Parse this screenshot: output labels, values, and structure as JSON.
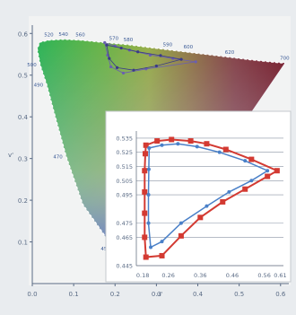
{
  "colors": {
    "background": "#e9ecef",
    "plot_area": "#f2f3f3",
    "axis": "#5a6b85",
    "label_text": "#3a5a96",
    "inset_series_red": "#d33a32",
    "inset_series_blue": "#4a80c8"
  },
  "chart_data": [
    {
      "type": "scatter",
      "title": "",
      "xlabel": "u'",
      "ylabel": "v'",
      "xlim": [
        0,
        0.62
      ],
      "ylim": [
        0,
        0.62
      ],
      "x_ticks": [
        "0.0",
        "0.1",
        "0.2",
        "0.3",
        "0.4",
        "0.5",
        "0.6"
      ],
      "y_ticks": [
        "0.1",
        "0.2",
        "0.3",
        "0.4",
        "0.5",
        "0.6"
      ],
      "locus_wavelength_labels": [
        "520",
        "540",
        "560",
        "570",
        "580",
        "590",
        "600",
        "620",
        "700",
        "500",
        "490",
        "470",
        "450"
      ],
      "spectral_locus": [
        {
          "x": 0.257,
          "y": 0.017
        },
        {
          "x": 0.197,
          "y": 0.084
        },
        {
          "x": 0.122,
          "y": 0.19
        },
        {
          "x": 0.082,
          "y": 0.305
        },
        {
          "x": 0.054,
          "y": 0.406
        },
        {
          "x": 0.035,
          "y": 0.477
        },
        {
          "x": 0.019,
          "y": 0.525
        },
        {
          "x": 0.012,
          "y": 0.562
        },
        {
          "x": 0.018,
          "y": 0.579
        },
        {
          "x": 0.04,
          "y": 0.584
        },
        {
          "x": 0.075,
          "y": 0.586
        },
        {
          "x": 0.116,
          "y": 0.584
        },
        {
          "x": 0.158,
          "y": 0.58
        },
        {
          "x": 0.197,
          "y": 0.576
        },
        {
          "x": 0.232,
          "y": 0.573
        },
        {
          "x": 0.278,
          "y": 0.567
        },
        {
          "x": 0.327,
          "y": 0.561
        },
        {
          "x": 0.377,
          "y": 0.555
        },
        {
          "x": 0.427,
          "y": 0.549
        },
        {
          "x": 0.477,
          "y": 0.543
        },
        {
          "x": 0.527,
          "y": 0.537
        },
        {
          "x": 0.563,
          "y": 0.533
        },
        {
          "x": 0.594,
          "y": 0.53
        },
        {
          "x": 0.61,
          "y": 0.529
        }
      ],
      "series": [
        {
          "values": [
            {
              "x": 0.175,
              "y": 0.578
            },
            {
              "x": 0.2,
              "y": 0.57
            },
            {
              "x": 0.235,
              "y": 0.56
            },
            {
              "x": 0.285,
              "y": 0.548
            },
            {
              "x": 0.34,
              "y": 0.54
            },
            {
              "x": 0.395,
              "y": 0.532
            },
            {
              "x": 0.275,
              "y": 0.515
            },
            {
              "x": 0.22,
              "y": 0.505
            },
            {
              "x": 0.19,
              "y": 0.52
            },
            {
              "x": 0.182,
              "y": 0.548
            }
          ]
        },
        {
          "values": [
            {
              "x": 0.18,
              "y": 0.572
            },
            {
              "x": 0.215,
              "y": 0.565
            },
            {
              "x": 0.255,
              "y": 0.556
            },
            {
              "x": 0.31,
              "y": 0.547
            },
            {
              "x": 0.36,
              "y": 0.538
            },
            {
              "x": 0.3,
              "y": 0.522
            },
            {
              "x": 0.245,
              "y": 0.512
            },
            {
              "x": 0.205,
              "y": 0.518
            },
            {
              "x": 0.186,
              "y": 0.54
            }
          ]
        }
      ]
    },
    {
      "type": "line",
      "title": "",
      "xlabel": "",
      "ylabel": "",
      "xlim": [
        0.16,
        0.62
      ],
      "ylim": [
        0.445,
        0.54
      ],
      "x_ticks": [
        "0.18",
        "0.26",
        "0.36",
        "0.46",
        "0.56",
        "0.61"
      ],
      "x_tick_values": [
        0.18,
        0.26,
        0.36,
        0.46,
        0.56,
        0.61
      ],
      "y_ticks": [
        "0.445",
        "0.465",
        "0.475",
        "0.495",
        "0.505",
        "0.515",
        "0.525",
        "0.535"
      ],
      "y_tick_values": [
        0.445,
        0.465,
        0.475,
        0.495,
        0.505,
        0.515,
        0.525,
        0.535
      ],
      "grid": true,
      "series": [
        {
          "values": [
            {
              "x": 0.19,
              "y": 0.53
            },
            {
              "x": 0.225,
              "y": 0.533
            },
            {
              "x": 0.27,
              "y": 0.534
            },
            {
              "x": 0.33,
              "y": 0.533
            },
            {
              "x": 0.38,
              "y": 0.531
            },
            {
              "x": 0.44,
              "y": 0.527
            },
            {
              "x": 0.52,
              "y": 0.52
            },
            {
              "x": 0.6,
              "y": 0.512
            },
            {
              "x": 0.57,
              "y": 0.508
            },
            {
              "x": 0.5,
              "y": 0.499
            },
            {
              "x": 0.43,
              "y": 0.49
            },
            {
              "x": 0.36,
              "y": 0.479
            },
            {
              "x": 0.3,
              "y": 0.466
            },
            {
              "x": 0.24,
              "y": 0.452
            },
            {
              "x": 0.19,
              "y": 0.451
            },
            {
              "x": 0.186,
              "y": 0.465
            },
            {
              "x": 0.186,
              "y": 0.482
            },
            {
              "x": 0.186,
              "y": 0.497
            },
            {
              "x": 0.186,
              "y": 0.512
            },
            {
              "x": 0.188,
              "y": 0.524
            }
          ]
        },
        {
          "values": [
            {
              "x": 0.2,
              "y": 0.528
            },
            {
              "x": 0.24,
              "y": 0.53
            },
            {
              "x": 0.29,
              "y": 0.531
            },
            {
              "x": 0.35,
              "y": 0.529
            },
            {
              "x": 0.42,
              "y": 0.525
            },
            {
              "x": 0.5,
              "y": 0.519
            },
            {
              "x": 0.57,
              "y": 0.512
            },
            {
              "x": 0.52,
              "y": 0.505
            },
            {
              "x": 0.45,
              "y": 0.497
            },
            {
              "x": 0.38,
              "y": 0.487
            },
            {
              "x": 0.3,
              "y": 0.475
            },
            {
              "x": 0.24,
              "y": 0.462
            },
            {
              "x": 0.205,
              "y": 0.458
            },
            {
              "x": 0.198,
              "y": 0.475
            },
            {
              "x": 0.198,
              "y": 0.495
            },
            {
              "x": 0.199,
              "y": 0.513
            }
          ]
        }
      ]
    }
  ]
}
